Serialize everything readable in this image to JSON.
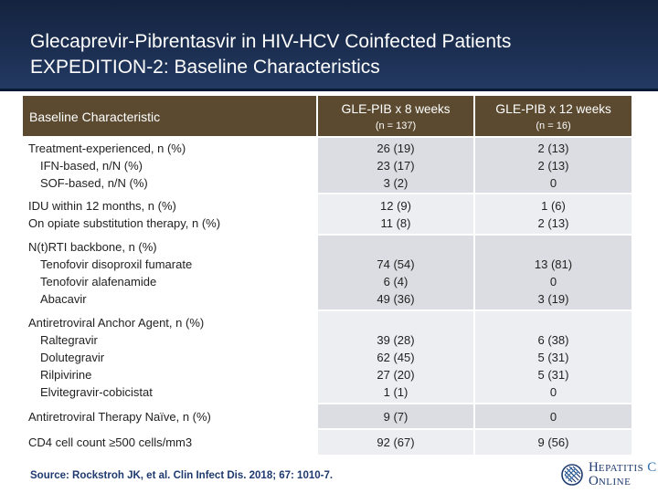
{
  "header": {
    "title_line1": "Glecaprevir-Pibrentasvir in HIV-HCV Coinfected Patients",
    "title_line2": "EXPEDITION-2: Baseline Characteristics"
  },
  "table": {
    "col_label": "Baseline Characteristic",
    "arm1": {
      "name": "GLE-PIB",
      "suffix": " x 8 weeks",
      "n": "(n = 137)"
    },
    "arm2": {
      "name": "GLE-PIB",
      "suffix": " x 12 weeks",
      "n": "(n = 16)"
    },
    "rows": [
      {
        "labels": [
          "Treatment-experienced, n (%)",
          "IFN-based, n/N (%)",
          "SOF-based, n/N (%)"
        ],
        "arm1": [
          "26 (19)",
          "23 (17)",
          "3 (2)"
        ],
        "arm2": [
          "2 (13)",
          "2 (13)",
          "0"
        ]
      },
      {
        "labels": [
          "IDU within 12 months, n (%)",
          "On opiate substitution therapy, n (%)"
        ],
        "arm1": [
          "12 (9)",
          "11 (8)"
        ],
        "arm2": [
          "1 (6)",
          "2 (13)"
        ]
      },
      {
        "labels": [
          "N(t)RTI backbone, n (%)",
          "Tenofovir disoproxil fumarate",
          "Tenofovir alafenamide",
          "Abacavir"
        ],
        "arm1": [
          "74 (54)",
          "6 (4)",
          "49 (36)"
        ],
        "arm2": [
          "13 (81)",
          "0",
          "3 (19)"
        ]
      },
      {
        "labels": [
          "Antiretroviral Anchor Agent, n (%)",
          "Raltegravir",
          "Dolutegravir",
          "Rilpivirine",
          "Elvitegravir-cobicistat"
        ],
        "arm1": [
          "39 (28)",
          "62 (45)",
          "27 (20)",
          "1 (1)"
        ],
        "arm2": [
          "6 (38)",
          "5 (31)",
          "5 (31)",
          "0"
        ]
      },
      {
        "labels": [
          "Antiretroviral Therapy Naïve, n (%)"
        ],
        "arm1": [
          "9 (7)"
        ],
        "arm2": [
          "0"
        ]
      },
      {
        "labels": [
          "CD4 cell count ≥500 cells/mm3"
        ],
        "arm1": [
          "92 (67)"
        ],
        "arm2": [
          "9 (56)"
        ]
      }
    ]
  },
  "source": "Source: Rockstroh JK, et al. Clin Infect Dis. 2018; 67: 1010-7.",
  "logo": {
    "line1_a": "H",
    "line1_b": "EPATITIS",
    "line1_c": "C",
    "line2_a": "O",
    "line2_b": "NLINE"
  }
}
